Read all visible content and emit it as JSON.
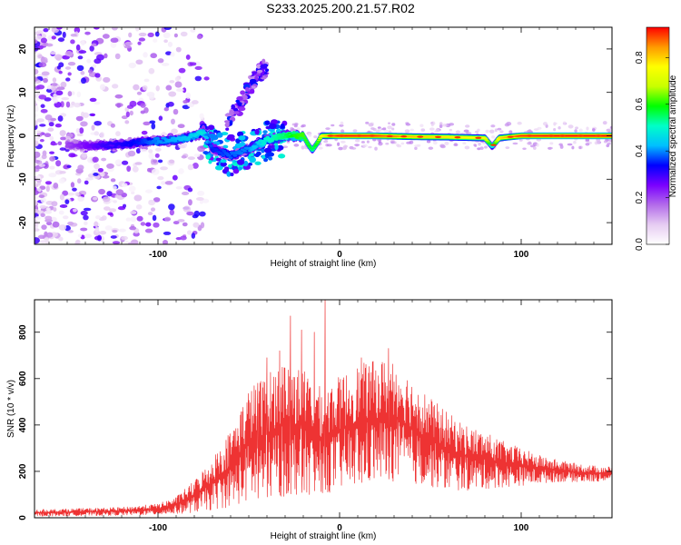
{
  "title": "S233.2025.200.21.57.R02",
  "chart_data": [
    {
      "type": "heatmap",
      "xlabel": "Height of straight line (km)",
      "ylabel": "Frequency (Hz)",
      "xlim": [
        -168,
        150
      ],
      "ylim": [
        -25,
        25
      ],
      "xticks": [
        -100,
        0,
        100
      ],
      "yticks": [
        -20,
        -10,
        0,
        10,
        20
      ],
      "grid": false,
      "colorbar": {
        "label": "Normalized spectral amplitude",
        "range": [
          0,
          0.93
        ],
        "ticks": [
          0.0,
          0.2,
          0.4,
          0.6,
          0.8
        ],
        "colormap": [
          "#ffffff",
          "#e6ccf2",
          "#b36bea",
          "#7a00ff",
          "#0000ff",
          "#00bfff",
          "#00ffc8",
          "#00ff00",
          "#c8ff00",
          "#ffff00",
          "#ff9900",
          "#ff0000"
        ]
      },
      "ridge": {
        "x": [
          -150,
          -140,
          -130,
          -120,
          -110,
          -100,
          -90,
          -80,
          -75,
          -70,
          -60,
          -50,
          -45,
          -40,
          -30,
          -25,
          -20,
          -17,
          -15,
          -12,
          -10,
          -5,
          0,
          20,
          40,
          60,
          80,
          84,
          88,
          100,
          120,
          150
        ],
        "y": [
          -2,
          -2.3,
          -2.2,
          -2,
          -1.5,
          -1.2,
          -1,
          0,
          1,
          -3,
          -4.5,
          -3,
          -2,
          -1,
          0,
          0,
          0,
          -2.2,
          -3.3,
          -1.5,
          0,
          0,
          0,
          0,
          -0.2,
          -0.3,
          -0.5,
          -2.5,
          -0.5,
          0,
          0,
          0
        ],
        "amplitude": [
          0.2,
          0.25,
          0.3,
          0.32,
          0.35,
          0.4,
          0.42,
          0.45,
          0.48,
          0.35,
          0.38,
          0.4,
          0.45,
          0.5,
          0.55,
          0.6,
          0.62,
          0.6,
          0.55,
          0.62,
          0.75,
          0.85,
          0.92,
          0.9,
          0.82,
          0.78,
          0.75,
          0.5,
          0.78,
          0.9,
          0.92,
          0.92
        ]
      },
      "diagonal_band": {
        "x": [
          -62,
          -55,
          -50,
          -45,
          -40
        ],
        "y": [
          3,
          7,
          11,
          14,
          16
        ],
        "amplitude": 0.3
      }
    },
    {
      "type": "line",
      "xlabel": "Height of straight line (km)",
      "ylabel": "SNR (10 * v/v)",
      "xlim": [
        -168,
        150
      ],
      "ylim": [
        0,
        940
      ],
      "xticks": [
        -100,
        0,
        100
      ],
      "yticks": [
        0,
        200,
        400,
        600,
        800
      ],
      "grid": false,
      "color": "#ee3333",
      "envelope": {
        "x": [
          -168,
          -120,
          -100,
          -90,
          -80,
          -70,
          -60,
          -50,
          -40,
          -30,
          -20,
          -10,
          0,
          10,
          20,
          30,
          40,
          50,
          60,
          70,
          80,
          90,
          100,
          110,
          120,
          130,
          140,
          150
        ],
        "upper": [
          35,
          45,
          60,
          90,
          160,
          260,
          380,
          560,
          620,
          690,
          640,
          560,
          610,
          660,
          680,
          690,
          600,
          520,
          450,
          400,
          370,
          330,
          300,
          270,
          250,
          235,
          225,
          220
        ],
        "lower": [
          5,
          8,
          10,
          12,
          15,
          20,
          30,
          40,
          50,
          60,
          70,
          80,
          90,
          110,
          120,
          130,
          120,
          110,
          100,
          100,
          110,
          120,
          130,
          140,
          150,
          150,
          150,
          160
        ]
      },
      "peaks": [
        {
          "x": -8,
          "y": 940
        },
        {
          "x": -14,
          "y": 800
        },
        {
          "x": -21,
          "y": 810
        },
        {
          "x": -27,
          "y": 870
        },
        {
          "x": -33,
          "y": 720
        },
        {
          "x": -40,
          "y": 690
        },
        {
          "x": -45,
          "y": 580
        },
        {
          "x": 27,
          "y": 730
        },
        {
          "x": 12,
          "y": 690
        }
      ]
    }
  ]
}
